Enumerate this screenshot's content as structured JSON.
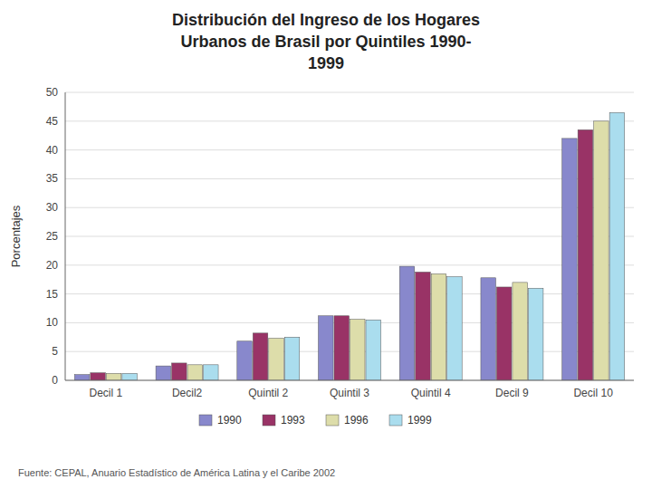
{
  "chart_data": {
    "type": "bar",
    "title": "Distribución del Ingreso de los Hogares\nUrbanos de Brasil por Quintiles 1990-\n1999",
    "ylabel": "Porcentajes",
    "categories": [
      "Decil 1",
      "Decil2",
      "Quintil 2",
      "Quintil 3",
      "Quintil 4",
      "Decil 9",
      "Decil 10"
    ],
    "series": [
      {
        "name": "1990",
        "color": "#8888cc",
        "values": [
          1.0,
          2.5,
          6.8,
          11.2,
          19.8,
          17.8,
          42.0
        ]
      },
      {
        "name": "1993",
        "color": "#993366",
        "values": [
          1.3,
          3.0,
          8.2,
          11.2,
          18.8,
          16.2,
          43.5
        ]
      },
      {
        "name": "1996",
        "color": "#ddddaa",
        "values": [
          1.2,
          2.7,
          7.3,
          10.6,
          18.5,
          17.0,
          45.0
        ]
      },
      {
        "name": "1999",
        "color": "#aaddee",
        "values": [
          1.2,
          2.7,
          7.5,
          10.5,
          18.0,
          16.0,
          46.5
        ]
      }
    ],
    "ylim": [
      0,
      50
    ],
    "yticks": [
      0,
      5,
      10,
      15,
      20,
      25,
      30,
      35,
      40,
      45,
      50
    ],
    "grid": true,
    "legend": "bottom",
    "annotations": [
      "Fuente: CEPAL, Anuario Estadístico de América Latina y el Caribe 2002"
    ]
  }
}
